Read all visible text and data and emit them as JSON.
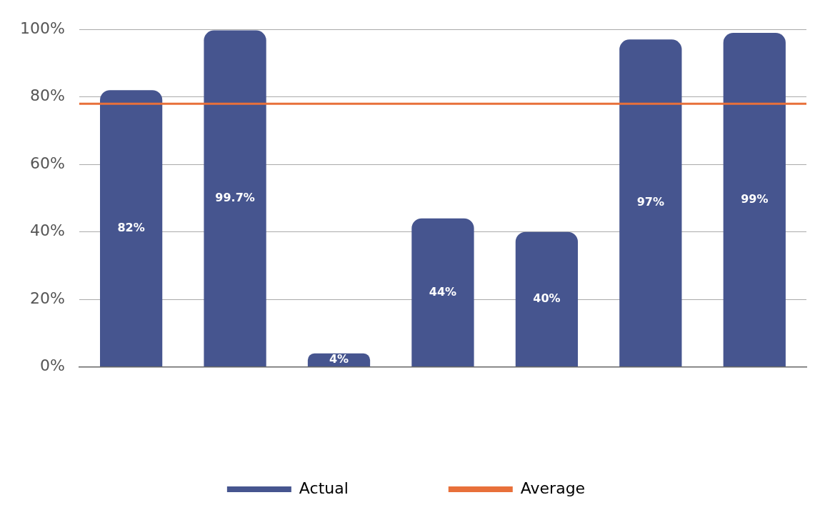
{
  "chart_data": {
    "type": "bar",
    "categories": [
      null,
      null,
      null,
      null,
      null,
      null,
      null
    ],
    "series": [
      {
        "name": "Actual",
        "color": "#46558f",
        "values": [
          82,
          99.7,
          4,
          44,
          40,
          97,
          99
        ],
        "value_labels": [
          "82%",
          "99.7%",
          "4%",
          "44%",
          "40%",
          "97%",
          "99%"
        ]
      }
    ],
    "ylim": [
      0,
      100
    ],
    "yticks": [
      {
        "value": 0,
        "label": "0%"
      },
      {
        "value": 20,
        "label": "20%"
      },
      {
        "value": 40,
        "label": "40%"
      },
      {
        "value": 60,
        "label": "60%"
      },
      {
        "value": 80,
        "label": "80%"
      },
      {
        "value": 100,
        "label": "100%"
      }
    ],
    "ref_lines": [
      {
        "axis": "y",
        "value": 78,
        "label": "Average",
        "color": "#e8703a"
      }
    ],
    "grid": "y",
    "legend": "bottom"
  }
}
